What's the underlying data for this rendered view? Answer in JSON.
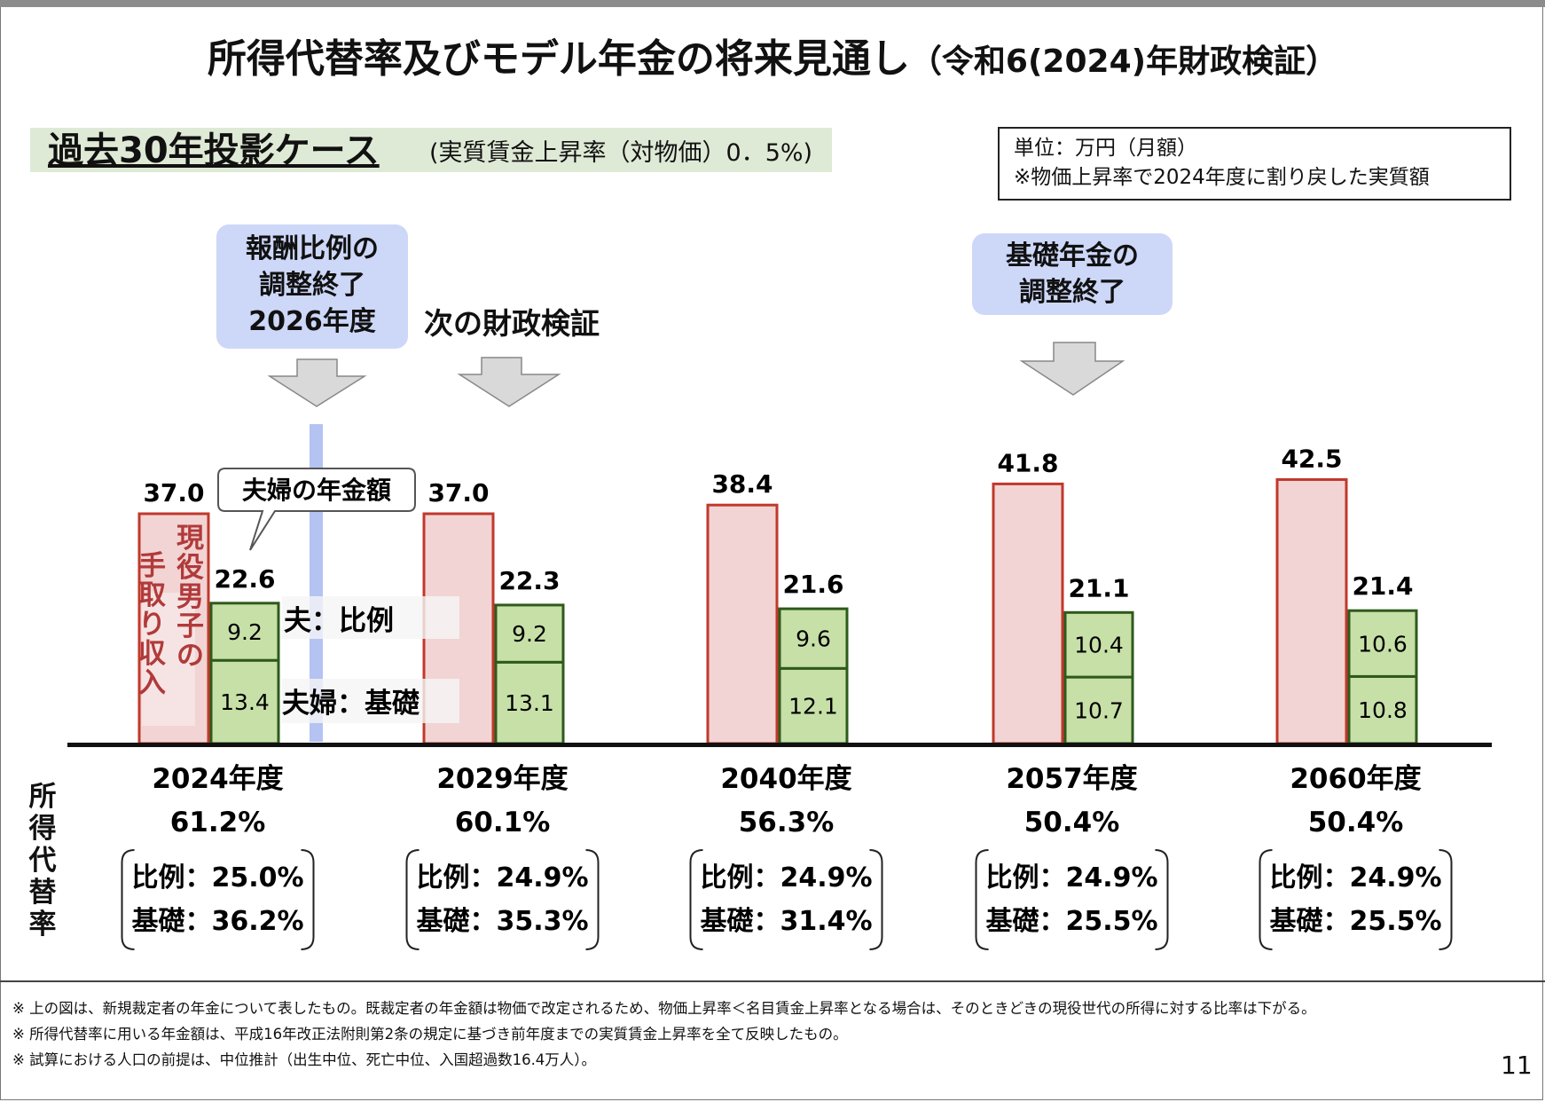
{
  "header": {
    "title_main": "所得代替率及びモデル年金の将来見通し",
    "title_sub": "（令和6(2024)年財政検証）"
  },
  "case": {
    "name": "過去30年投影ケース",
    "detail": "(実質賃金上昇率（対物価）0．5%)"
  },
  "unit_note": {
    "line1": "単位：万円（月額）",
    "line2": "※物価上昇率で2024年度に割り戻した実質額"
  },
  "callouts": {
    "hoshu": [
      "報酬比例の",
      "調整終了",
      "2026年度"
    ],
    "next_review": "次の財政検証",
    "kiso": [
      "基礎年金の",
      "調整終了"
    ]
  },
  "annotations": {
    "couple_amount": "夫婦の年金額",
    "worker_income": "現役男子の手取り収入",
    "husband_proportional": "夫：比例",
    "couple_basic": "夫婦：基礎"
  },
  "replacement_label": "所得代替率",
  "colors": {
    "income_fill": "#f2d4d4",
    "income_stroke": "#c0392b",
    "pension_fill": "#c7e0a8",
    "pension_stroke": "#2e5a1c",
    "callout_bg": "#cdd7f8",
    "marker_line": "#b4c3f2",
    "arrow_fill": "#d9d9d9"
  },
  "chart_data": {
    "type": "bar",
    "categories": [
      "2024年度",
      "2029年度",
      "2040年度",
      "2057年度",
      "2060年度"
    ],
    "series": [
      {
        "name": "現役男子の手取り収入",
        "values": [
          37.0,
          37.0,
          38.4,
          41.8,
          42.5
        ]
      },
      {
        "name": "夫：比例",
        "values": [
          9.2,
          9.2,
          9.6,
          10.4,
          10.6
        ]
      },
      {
        "name": "夫婦：基礎",
        "values": [
          13.4,
          13.1,
          12.1,
          10.7,
          10.8
        ]
      }
    ],
    "pension_totals": [
      22.6,
      22.3,
      21.6,
      21.1,
      21.4
    ],
    "income_labels": [
      "37.0",
      "37.0",
      "38.4",
      "41.8",
      "42.5"
    ],
    "total_labels": [
      "22.6",
      "22.3",
      "21.6",
      "21.1",
      "21.4"
    ],
    "hoshu_labels": [
      "9.2",
      "9.2",
      "9.6",
      "10.4",
      "10.6"
    ],
    "kiso_labels": [
      "13.4",
      "13.1",
      "12.1",
      "10.7",
      "10.8"
    ],
    "replacement_rates": [
      "61.2%",
      "60.1%",
      "56.3%",
      "50.4%",
      "50.4%"
    ],
    "proportional_rates": [
      "比例：25.0%",
      "比例：24.9%",
      "比例：24.9%",
      "比例：24.9%",
      "比例：24.9%"
    ],
    "basic_rates": [
      "基礎：36.2%",
      "基礎：35.3%",
      "基礎：31.4%",
      "基礎：25.5%",
      "基礎：25.5%"
    ],
    "ylim": [
      0,
      45
    ],
    "stacked_pension": true,
    "grid": false
  },
  "footnotes": [
    "※ 上の図は、新規裁定者の年金について表したもの。既裁定者の年金額は物価で改定されるため、物価上昇率＜名目賃金上昇率となる場合は、そのときどきの現役世代の所得に対する比率は下がる。",
    "※ 所得代替率に用いる年金額は、平成16年改正法附則第2条の規定に基づき前年度までの実質賃金上昇率を全て反映したもの。",
    "※ 試算における人口の前提は、中位推計（出生中位、死亡中位、入国超過数16.4万人）。"
  ],
  "page_number": "11"
}
